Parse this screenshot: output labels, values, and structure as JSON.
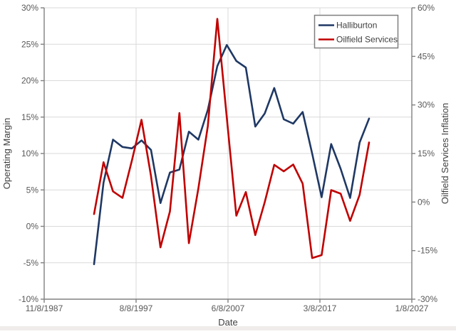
{
  "chart_data": {
    "type": "line",
    "title": "",
    "x_axis": {
      "label": "Date",
      "tick_labels": [
        "11/8/1987",
        "8/8/1997",
        "6/8/2007",
        "3/8/2017",
        "1/8/2027"
      ]
    },
    "left_axis": {
      "label": "Operating Margin",
      "tick_labels": [
        "30%",
        "25%",
        "20%",
        "15%",
        "10%",
        "5%",
        "0%",
        "-5%",
        "-10%"
      ],
      "tick_values": [
        30,
        25,
        20,
        15,
        10,
        5,
        0,
        -5,
        -10
      ],
      "min": -10,
      "max": 30
    },
    "right_axis": {
      "label": "Oilfield Services Inflation",
      "tick_labels": [
        "60%",
        "45%",
        "30%",
        "15%",
        "0%",
        "-15%",
        "-30%"
      ],
      "tick_values": [
        60,
        45,
        30,
        15,
        0,
        -15,
        -30
      ],
      "min": -30,
      "max": 60
    },
    "grid": true,
    "legend_position": "top-right",
    "x": [
      1993,
      1994,
      1995,
      1996,
      1997,
      1998,
      1999,
      2000,
      2001,
      2002,
      2003,
      2004,
      2005,
      2006,
      2007,
      2008,
      2009,
      2010,
      2011,
      2012,
      2013,
      2014,
      2015,
      2016,
      2017,
      2018,
      2019,
      2020,
      2021,
      2022
    ],
    "series": [
      {
        "name": "Halliburton",
        "axis": "left",
        "color": "#1f3864",
        "values": [
          -5.2,
          6.0,
          11.9,
          10.9,
          10.7,
          11.8,
          10.5,
          3.2,
          7.4,
          7.8,
          13.0,
          11.9,
          16.0,
          22.0,
          24.9,
          22.7,
          21.8,
          13.7,
          15.5,
          19.0,
          14.7,
          14.1,
          15.7,
          10.0,
          4.0,
          11.3,
          7.9,
          3.9,
          11.5,
          14.8
        ]
      },
      {
        "name": "Oilfield Services",
        "axis": "right",
        "color": "#c00000",
        "values": [
          -3.7,
          12.3,
          3.3,
          1.3,
          12.9,
          25.4,
          8.1,
          -14.0,
          -2.9,
          27.5,
          -12.7,
          4.2,
          23.5,
          56.6,
          26.1,
          -4.2,
          3.1,
          -10.2,
          0.0,
          11.5,
          9.5,
          11.6,
          5.7,
          -17.3,
          -16.4,
          3.7,
          2.6,
          -5.8,
          2.2,
          18.4
        ]
      }
    ]
  },
  "colors": {
    "gridline": "#d9d9d9",
    "axis_line": "#808080",
    "tick_text": "#595959",
    "title_text": "#404040",
    "background": "#ffffff"
  }
}
